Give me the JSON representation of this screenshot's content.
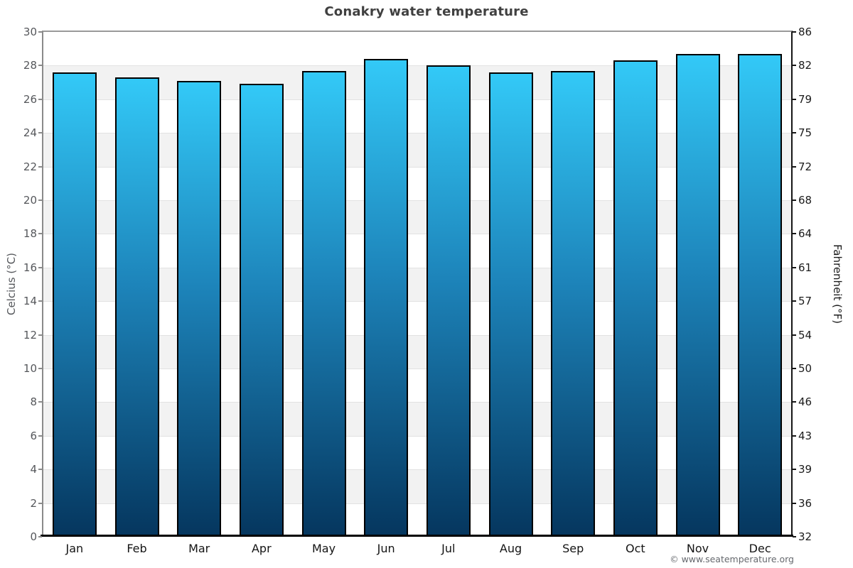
{
  "chart_data": {
    "type": "bar",
    "title": "Conakry water temperature",
    "categories": [
      "Jan",
      "Feb",
      "Mar",
      "Apr",
      "May",
      "Jun",
      "Jul",
      "Aug",
      "Sep",
      "Oct",
      "Nov",
      "Dec"
    ],
    "values": [
      27.6,
      27.3,
      27.1,
      26.9,
      27.7,
      28.4,
      28.0,
      27.6,
      27.7,
      28.3,
      28.7,
      28.7
    ],
    "series_name": "Water temperature (°C)",
    "ylabel_left": "Celcius (°C)",
    "ylabel_right": "Fahrenheit (°F)",
    "ylim": [
      0,
      30
    ],
    "ytick_step_celsius": 2,
    "yticks_celsius": [
      "30",
      "28",
      "26",
      "24",
      "22",
      "20",
      "18",
      "16",
      "14",
      "12",
      "10",
      "8",
      "6",
      "4",
      "2",
      "0"
    ],
    "yticks_fahrenheit": [
      "86",
      "82",
      "79",
      "75",
      "72",
      "68",
      "64",
      "61",
      "57",
      "54",
      "50",
      "46",
      "43",
      "39",
      "36",
      "32"
    ],
    "grid": "alternating horizontal bands every 2°C",
    "legend": "none",
    "footer": "© www.seatemperature.org",
    "colors": {
      "bar_gradient_top": "#33c9f7",
      "bar_gradient_mid": "#1d84ba",
      "bar_gradient_bottom": "#05365e",
      "bar_border": "#000000",
      "band_light": "#ffffff",
      "band_gray": "#f2f2f2",
      "gridline": "#e2e2e2",
      "axis_left": "#8a8a8a",
      "axis_right": "#161616",
      "axis_bottom": "#000000",
      "tick_label_left": "#55575b",
      "tick_label_right": "#1b1b1b",
      "month_label": "#141414",
      "title": "#404040",
      "footer": "#66696e"
    }
  }
}
